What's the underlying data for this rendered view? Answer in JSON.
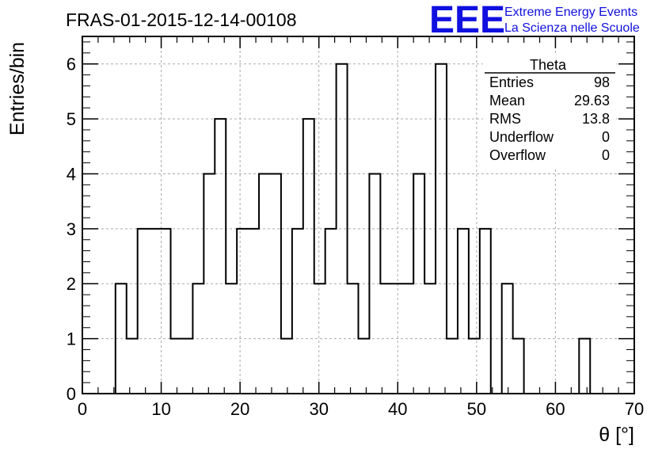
{
  "title": "FRAS-01-2015-12-14-00108",
  "brand": {
    "logo": "EEE",
    "line1": "Extreme Energy Events",
    "line2": "La Scienza nelle Scuole",
    "color": "#1010e0"
  },
  "stats": {
    "title": "Theta",
    "rows": [
      {
        "label": "Entries",
        "value": "98"
      },
      {
        "label": "Mean",
        "value": "29.63"
      },
      {
        "label": "RMS",
        "value": "13.8"
      },
      {
        "label": "Underflow",
        "value": "0"
      },
      {
        "label": "Overflow",
        "value": "0"
      }
    ]
  },
  "chart_data": {
    "type": "bar",
    "histogram": true,
    "title": "FRAS-01-2015-12-14-00108",
    "xlabel": "θ [°]",
    "ylabel": "Entries/bin",
    "xlim": [
      0,
      70
    ],
    "ylim": [
      0,
      6.5
    ],
    "grid": true,
    "bin_edges": [
      4.2,
      5.6,
      7.0,
      8.4,
      9.8,
      11.2,
      12.6,
      14.0,
      15.4,
      16.8,
      18.2,
      19.6,
      21.0,
      22.4,
      23.8,
      25.2,
      26.6,
      28.0,
      29.4,
      30.8,
      32.2,
      33.6,
      35.0,
      36.4,
      37.8,
      39.2,
      40.6,
      42.0,
      43.4,
      44.8,
      46.2,
      47.6,
      49.0,
      50.4,
      51.8,
      53.2,
      54.6,
      56.0,
      57.4,
      58.8,
      60.2,
      61.6,
      63.0,
      64.4
    ],
    "values": [
      2,
      1,
      3,
      3,
      3,
      1,
      1,
      2,
      4,
      5,
      2,
      3,
      3,
      4,
      4,
      1,
      3,
      5,
      2,
      3,
      6,
      2,
      1,
      4,
      2,
      2,
      2,
      4,
      2,
      6,
      1,
      3,
      1,
      3,
      0,
      2,
      1,
      0,
      0,
      0,
      0,
      0,
      1
    ],
    "x_ticks": [
      "0",
      "10",
      "20",
      "30",
      "40",
      "50",
      "60",
      "70"
    ],
    "y_ticks": [
      "0",
      "1",
      "2",
      "3",
      "4",
      "5",
      "6"
    ]
  }
}
